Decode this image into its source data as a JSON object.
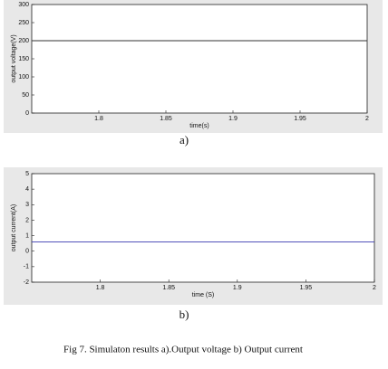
{
  "chart_data": [
    {
      "type": "line",
      "x_label": "time(s)",
      "y_label": "output voltage(V)",
      "caption": "a)",
      "x": [
        1.75,
        2
      ],
      "series": [
        {
          "color": "#333333",
          "values": [
            200,
            200
          ]
        }
      ],
      "xlim": [
        1.75,
        2
      ],
      "xticks": [
        1.8,
        1.85,
        1.9,
        1.95,
        2
      ],
      "ylim": [
        0,
        300
      ],
      "yticks": [
        0,
        50,
        100,
        150,
        200,
        250,
        300
      ],
      "grid": false
    },
    {
      "type": "line",
      "x_label": "time (S)",
      "y_label": "output current(A)",
      "caption": "b)",
      "x": [
        1.75,
        2
      ],
      "series": [
        {
          "color": "#3a3ab0",
          "values": [
            0.6,
            0.6
          ]
        }
      ],
      "xlim": [
        1.75,
        2
      ],
      "xticks": [
        1.8,
        1.85,
        1.9,
        1.95,
        2
      ],
      "ylim": [
        -2,
        5
      ],
      "yticks": [
        -2,
        -1,
        0,
        1,
        2,
        3,
        4,
        5
      ],
      "grid": false
    }
  ],
  "caption": "Fig 7. Simulaton results a).Output voltage b) Output current"
}
